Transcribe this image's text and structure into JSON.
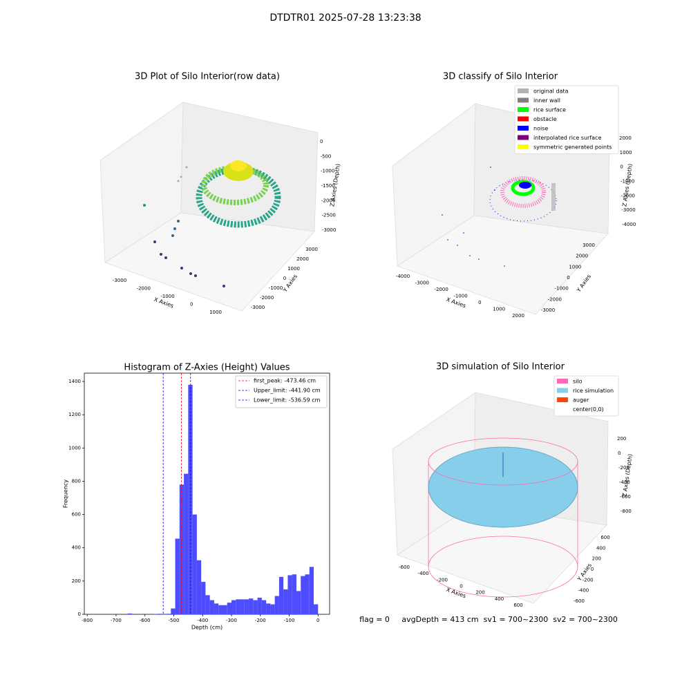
{
  "title": "DTDTR01 2025-07-28 13:23:38",
  "footer": "flag = 0     avgDepth = 413 cm  sv1 = 700~2300  sv2 = 700~2300",
  "chart_data": [
    {
      "type": "scatter3d",
      "title": "3D Plot of Silo Interior(row data)",
      "x_label": "X Axies",
      "y_label": "Y Axies",
      "z_label": "Z Axies (Depth)",
      "xticks": [
        -3000,
        -2000,
        -1000,
        0,
        1000
      ],
      "yticks": [
        -3000,
        -2000,
        -1000,
        0,
        1000,
        2000,
        3000
      ],
      "zticks": [
        0,
        -500,
        -1000,
        -1500,
        -2000,
        -2500,
        -3000
      ]
    },
    {
      "type": "scatter3d",
      "title": "3D classify of Silo Interior",
      "x_label": "X Axies",
      "y_label": "Y Axies",
      "z_label": "Z Axies (Depth)",
      "xticks": [
        -4000,
        -3000,
        -2000,
        -1000,
        0,
        1000,
        2000
      ],
      "yticks": [
        -3000,
        -2000,
        -1000,
        0,
        1000,
        2000,
        3000
      ],
      "zticks": [
        2000,
        1000,
        0,
        -1000,
        -2000,
        -3000,
        -4000
      ],
      "series": [
        {
          "name": "original data",
          "color": "#b3b3b3"
        },
        {
          "name": "inner wall",
          "color": "#808080"
        },
        {
          "name": "rice surface",
          "color": "#00ff00"
        },
        {
          "name": "obstacle",
          "color": "#ff0000"
        },
        {
          "name": "noise",
          "color": "#0000ff"
        },
        {
          "name": "interpolated rice surface",
          "color": "#800080"
        },
        {
          "name": "symmetric generated points",
          "color": "#ffff00"
        }
      ]
    },
    {
      "type": "histogram",
      "title": "Histogram of Z-Axies (Height) Values",
      "x_label": "Depth (cm)",
      "y_label": "Frequency",
      "color": "#4d4dff",
      "bins": [
        -825,
        -810,
        -795,
        -780,
        -765,
        -750,
        -735,
        -720,
        -705,
        -690,
        -675,
        -660,
        -645,
        -630,
        -615,
        -600,
        -585,
        -570,
        -555,
        -540,
        -525,
        -510,
        -495,
        -480,
        -465,
        -450,
        -435,
        -420,
        -405,
        -390,
        -375,
        -360,
        -345,
        -330,
        -315,
        -300,
        -285,
        -270,
        -255,
        -240,
        -225,
        -210,
        -195,
        -180,
        -165,
        -150,
        -135,
        -120,
        -105,
        -90,
        -75,
        -60,
        -45,
        -30,
        -15,
        0
      ],
      "values": [
        0,
        0,
        0,
        0,
        0,
        0,
        0,
        0,
        0,
        0,
        0,
        5,
        0,
        0,
        0,
        0,
        0,
        2,
        3,
        0,
        3,
        35,
        455,
        780,
        845,
        1380,
        600,
        325,
        195,
        115,
        85,
        65,
        55,
        55,
        70,
        85,
        90,
        90,
        90,
        95,
        85,
        100,
        85,
        65,
        60,
        110,
        225,
        150,
        235,
        240,
        140,
        230,
        240,
        285,
        60
      ],
      "xlim": [
        -810,
        40
      ],
      "ylim": [
        0,
        1450
      ],
      "xticks": [
        -800,
        -700,
        -600,
        -500,
        -400,
        -300,
        -200,
        -100,
        0
      ],
      "yticks": [
        0,
        200,
        400,
        600,
        800,
        1000,
        1200,
        1400
      ],
      "lines": [
        {
          "name": "first_peak: -473.46 cm",
          "value": -473.46,
          "color": "#ff0000"
        },
        {
          "name": "Upper_limit: -441.90 cm",
          "value": -441.9,
          "color": "#0000ff"
        },
        {
          "name": "Lower_limit: -536.59 cm",
          "value": -536.59,
          "color": "#0000ff"
        }
      ],
      "legend": "upper right"
    },
    {
      "type": "surface3d",
      "title": "3D simulation of Silo Interior",
      "x_label": "X Axies",
      "y_label": "Y Axies",
      "z_label": "Z Axies (Depth)",
      "xticks": [
        -600,
        -400,
        -200,
        0,
        200,
        400,
        600
      ],
      "yticks": [
        -600,
        -400,
        -200,
        0,
        200,
        400,
        600
      ],
      "zticks": [
        200,
        0,
        -200,
        -400,
        -600,
        -800
      ],
      "series": [
        {
          "name": "silo",
          "color": "#ff69b4"
        },
        {
          "name": "rice simulation",
          "color": "#87ceeb"
        },
        {
          "name": "auger",
          "color": "#ff4500"
        },
        {
          "name": "center(0,0)"
        }
      ]
    }
  ]
}
